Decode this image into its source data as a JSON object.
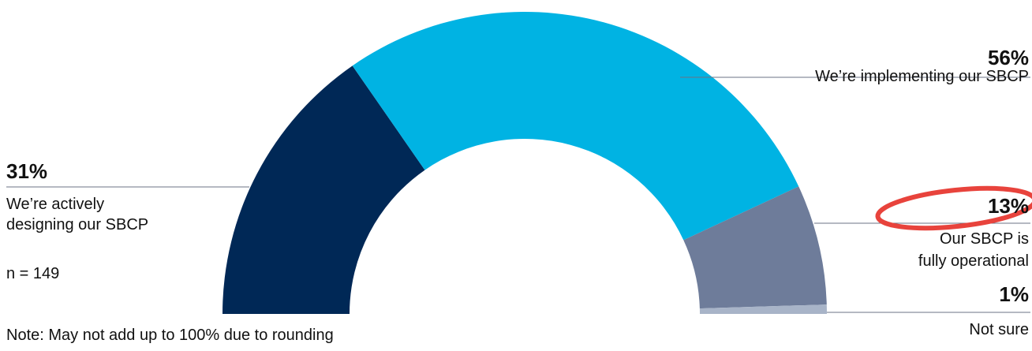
{
  "chart_data": {
    "type": "pie",
    "subtype": "semicircle-donut",
    "slices": [
      {
        "pct_label": "31%",
        "label_lines": [
          "We’re actively",
          "designing our SBCP"
        ],
        "value": 31,
        "color": "#002856"
      },
      {
        "pct_label": "56%",
        "label_lines": [
          "We’re implementing our SBCP"
        ],
        "value": 56,
        "color": "#00b3e3"
      },
      {
        "pct_label": "13%",
        "label_lines": [
          "Our SBCP is",
          "fully operational"
        ],
        "value": 13,
        "color": "#6e7c9a"
      },
      {
        "pct_label": "1%",
        "label_lines": [
          "Not sure"
        ],
        "value": 1,
        "color": "#a8b4c8"
      }
    ],
    "n_label": "n = 149",
    "note": "Note: May not add up to 100% due to rounding",
    "highlight_color": "#e8433c"
  }
}
